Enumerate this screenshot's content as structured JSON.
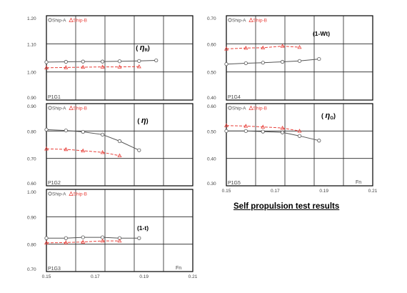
{
  "caption": "Self propulsion test results",
  "legend": {
    "ship_a": "Ship-A",
    "ship_b": "Ship-B"
  },
  "colors": {
    "ship_a": "#555555",
    "ship_b": "#e8403a",
    "grid": "#222222",
    "frame": "#000000",
    "label": "#444444"
  },
  "chart_data": [
    {
      "panel_label": "P1G1",
      "type": "line",
      "title": "(η R)",
      "xlim": [
        0.15,
        0.21
      ],
      "ylim": [
        0.9,
        1.2
      ],
      "yticks": [
        "0.90",
        "1.00",
        "1.10",
        "1.20"
      ],
      "xticks": [],
      "xunit": "",
      "legend": "top-left",
      "series": [
        {
          "name": "Ship-A",
          "x": [
            0.15,
            0.158,
            0.165,
            0.173,
            0.18,
            0.188,
            0.195
          ],
          "y": [
            1.035,
            1.036,
            1.037,
            1.037,
            1.038,
            1.039,
            1.041
          ]
        },
        {
          "name": "Ship-B",
          "x": [
            0.15,
            0.158,
            0.165,
            0.173,
            0.18,
            0.188
          ],
          "y": [
            1.015,
            1.016,
            1.017,
            1.018,
            1.018,
            1.019
          ]
        }
      ]
    },
    {
      "panel_label": "P1G2",
      "type": "line",
      "title": "(η)",
      "xlim": [
        0.15,
        0.21
      ],
      "ylim": [
        0.6,
        0.9
      ],
      "yticks": [
        "0.60",
        "0.70",
        "0.80",
        "0.90"
      ],
      "xticks": [],
      "xunit": "",
      "legend": "top-left",
      "series": [
        {
          "name": "Ship-A",
          "x": [
            0.15,
            0.158,
            0.165,
            0.173,
            0.18,
            0.188
          ],
          "y": [
            0.805,
            0.802,
            0.797,
            0.787,
            0.763,
            0.73
          ]
        },
        {
          "name": "Ship-B",
          "x": [
            0.15,
            0.158,
            0.165,
            0.173,
            0.18
          ],
          "y": [
            0.735,
            0.733,
            0.728,
            0.722,
            0.71
          ]
        }
      ]
    },
    {
      "panel_label": "P1G3",
      "type": "line",
      "title": "(1-t)",
      "xlim": [
        0.15,
        0.21
      ],
      "ylim": [
        0.7,
        1.0
      ],
      "yticks": [
        "0.70",
        "0.80",
        "0.90",
        "1.00"
      ],
      "xticks": [
        "0.15",
        "0.17",
        "0.19",
        "0.21"
      ],
      "xunit": "Fn",
      "legend": "top-left",
      "series": [
        {
          "name": "Ship-A",
          "x": [
            0.15,
            0.158,
            0.165,
            0.173,
            0.18,
            0.188
          ],
          "y": [
            0.822,
            0.822,
            0.825,
            0.825,
            0.822,
            0.822
          ]
        },
        {
          "name": "Ship-B",
          "x": [
            0.15,
            0.158,
            0.165,
            0.173,
            0.18
          ],
          "y": [
            0.805,
            0.806,
            0.808,
            0.812,
            0.812
          ]
        }
      ]
    },
    {
      "panel_label": "P1G4",
      "type": "line",
      "title": "(1-Wt)",
      "xlim": [
        0.15,
        0.21
      ],
      "ylim": [
        0.4,
        0.7
      ],
      "yticks": [
        "0.40",
        "0.50",
        "0.60",
        "0.70"
      ],
      "xticks": [],
      "xunit": "",
      "legend": "top-left",
      "series": [
        {
          "name": "Ship-A",
          "x": [
            0.15,
            0.158,
            0.165,
            0.173,
            0.18,
            0.188
          ],
          "y": [
            0.528,
            0.531,
            0.533,
            0.536,
            0.539,
            0.546
          ]
        },
        {
          "name": "Ship-B",
          "x": [
            0.15,
            0.158,
            0.165,
            0.173,
            0.18
          ],
          "y": [
            0.582,
            0.585,
            0.586,
            0.592,
            0.588
          ]
        }
      ]
    },
    {
      "panel_label": "P1G5",
      "type": "line",
      "title": "(η O)",
      "xlim": [
        0.15,
        0.21
      ],
      "ylim": [
        0.3,
        0.6
      ],
      "yticks": [
        "0.30",
        "0.40",
        "0.50",
        "0.60"
      ],
      "xticks": [
        "0.15",
        "0.17",
        "0.19",
        "0.21"
      ],
      "xunit": "Fn",
      "legend": "top-left",
      "series": [
        {
          "name": "Ship-A",
          "x": [
            0.15,
            0.158,
            0.165,
            0.173,
            0.18,
            0.188
          ],
          "y": [
            0.5,
            0.5,
            0.498,
            0.495,
            0.482,
            0.465
          ]
        },
        {
          "name": "Ship-B",
          "x": [
            0.15,
            0.158,
            0.165,
            0.173,
            0.18
          ],
          "y": [
            0.52,
            0.518,
            0.515,
            0.511,
            0.5
          ]
        }
      ]
    }
  ]
}
